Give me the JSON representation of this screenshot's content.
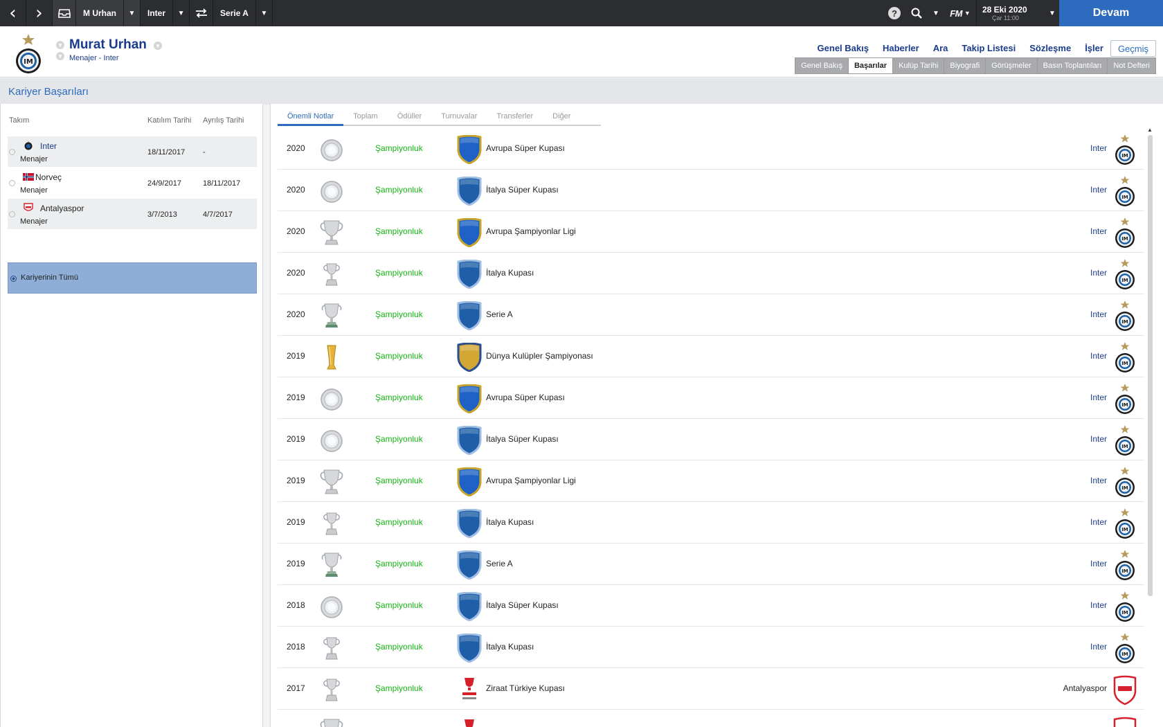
{
  "topbar": {
    "back_icon": "chevron-left-icon",
    "forward_icon": "chevron-right-icon",
    "inbox_icon": "inbox-icon",
    "manager_label": "M Urhan",
    "club_label": "Inter",
    "swap_icon": "swap-icon",
    "league_label": "Serie A",
    "help_label": "?",
    "search_icon": "search-icon",
    "fm_label": "FM",
    "date": "28 Eki 2020",
    "time": "Çar 11:00",
    "continue_label": "Devam",
    "accent_color": "#2c6bbd"
  },
  "header": {
    "name": "Murat Urhan",
    "subtitle": "Menajer - Inter",
    "nav": [
      "Genel Bakış",
      "Haberler",
      "Ara",
      "Takip Listesi",
      "Sözleşme",
      "İşler",
      "Geçmiş"
    ],
    "subnav": [
      "Genel Bakış",
      "Başarılar",
      "Kulüp Tarihi",
      "Biyografi",
      "Görüşmeler",
      "Basın Toplantıları",
      "Not Defteri"
    ]
  },
  "page_title": "Kariyer Başarıları",
  "left": {
    "col_team": "Takım",
    "col_join": "Katılım Tarihi",
    "col_leave": "Ayrılış Tarihi",
    "teams": [
      {
        "name": "Inter",
        "role": "Menajer",
        "join": "18/11/2017",
        "leave": "-"
      },
      {
        "name": "Norveç",
        "role": "Menajer",
        "join": "24/9/2017",
        "leave": "18/11/2017"
      },
      {
        "name": "Antalyaspor",
        "role": "Menajer",
        "join": "3/7/2013",
        "leave": "4/7/2017"
      }
    ],
    "all_career": "Kariyerinin Tümü"
  },
  "right": {
    "tabs": [
      "Önemli Notlar",
      "Toplam",
      "Ödüller",
      "Turnuvalar",
      "Transferler",
      "Diğer"
    ],
    "result_color": "#12b512",
    "rows": [
      {
        "year": "2020",
        "trophy": "plate-icon",
        "result": "Şampiyonluk",
        "comp_icon": "europe-shield-icon",
        "competition": "Avrupa Süper Kupası",
        "club": "Inter"
      },
      {
        "year": "2020",
        "trophy": "plate-icon",
        "result": "Şampiyonluk",
        "comp_icon": "italy-shield-icon",
        "competition": "İtalya Süper Kupası",
        "club": "Inter"
      },
      {
        "year": "2020",
        "trophy": "big-cup-icon",
        "result": "Şampiyonluk",
        "comp_icon": "europe-shield-icon",
        "competition": "Avrupa Şampiyonlar Ligi",
        "club": "Inter"
      },
      {
        "year": "2020",
        "trophy": "small-cup-icon",
        "result": "Şampiyonluk",
        "comp_icon": "italy-shield-icon",
        "competition": "İtalya Kupası",
        "club": "Inter"
      },
      {
        "year": "2020",
        "trophy": "league-cup-icon",
        "result": "Şampiyonluk",
        "comp_icon": "italy-shield-icon",
        "competition": "Serie A",
        "club": "Inter"
      },
      {
        "year": "2019",
        "trophy": "gold-cup-icon",
        "result": "Şampiyonluk",
        "comp_icon": "world-shield-icon",
        "competition": "Dünya Kulüpler Şampiyonası",
        "club": "Inter"
      },
      {
        "year": "2019",
        "trophy": "plate-icon",
        "result": "Şampiyonluk",
        "comp_icon": "europe-shield-icon",
        "competition": "Avrupa Süper Kupası",
        "club": "Inter"
      },
      {
        "year": "2019",
        "trophy": "plate-icon",
        "result": "Şampiyonluk",
        "comp_icon": "italy-shield-icon",
        "competition": "İtalya Süper Kupası",
        "club": "Inter"
      },
      {
        "year": "2019",
        "trophy": "big-cup-icon",
        "result": "Şampiyonluk",
        "comp_icon": "europe-shield-icon",
        "competition": "Avrupa Şampiyonlar Ligi",
        "club": "Inter"
      },
      {
        "year": "2019",
        "trophy": "small-cup-icon",
        "result": "Şampiyonluk",
        "comp_icon": "italy-shield-icon",
        "competition": "İtalya Kupası",
        "club": "Inter"
      },
      {
        "year": "2019",
        "trophy": "league-cup-icon",
        "result": "Şampiyonluk",
        "comp_icon": "italy-shield-icon",
        "competition": "Serie A",
        "club": "Inter"
      },
      {
        "year": "2018",
        "trophy": "plate-icon",
        "result": "Şampiyonluk",
        "comp_icon": "italy-shield-icon",
        "competition": "İtalya Süper Kupası",
        "club": "Inter"
      },
      {
        "year": "2018",
        "trophy": "small-cup-icon",
        "result": "Şampiyonluk",
        "comp_icon": "italy-shield-icon",
        "competition": "İtalya Kupası",
        "club": "Inter"
      },
      {
        "year": "2017",
        "trophy": "small-cup-icon",
        "result": "Şampiyonluk",
        "comp_icon": "ziraat-cup-icon",
        "competition": "Ziraat Türkiye Kupası",
        "club": "Antalyaspor"
      },
      {
        "year": "",
        "trophy": "big-cup-icon",
        "result": "",
        "comp_icon": "ziraat-cup-icon",
        "competition": "",
        "club": ""
      }
    ]
  }
}
